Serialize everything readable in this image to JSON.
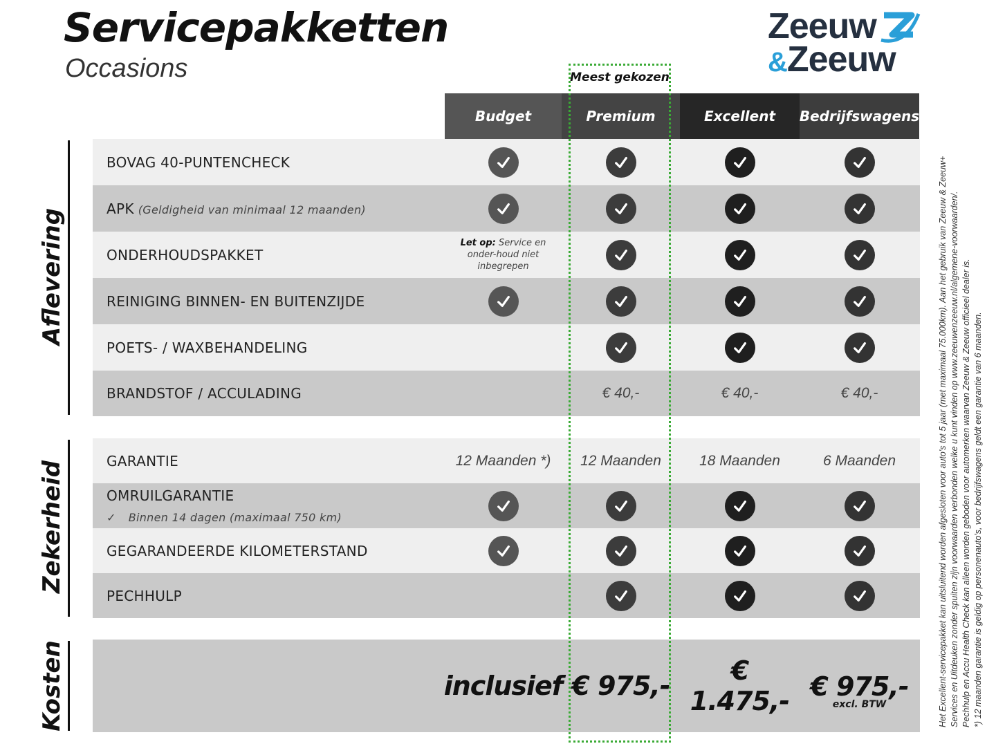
{
  "header": {
    "title": "Servicepakketten",
    "subtitle": "Occasions",
    "logo_text": [
      "Zeeuw",
      "&Zeeuw"
    ]
  },
  "highlight": {
    "label": "Meest gekozen",
    "color": "#3aaa35"
  },
  "columns": [
    {
      "label": "Budget",
      "header_color": "#555555",
      "check_color": "#555555"
    },
    {
      "label": "Premium",
      "header_color": "#444444",
      "check_color": "#3c3c3c"
    },
    {
      "label": "Excellent",
      "header_color": "#262626",
      "check_color": "#1f1f1f"
    },
    {
      "label": "Bedrijfswagens",
      "header_color": "#3d3d3d",
      "check_color": "#333333"
    }
  ],
  "sections": [
    {
      "title": "Aflevering",
      "rows": [
        {
          "label": "BOVAG 40-PUNTENCHECK",
          "cells": [
            "check",
            "check",
            "check",
            "check"
          ]
        },
        {
          "label": "APK",
          "note": "(Geldigheid van minimaal 12 maanden)",
          "cells": [
            "check",
            "check",
            "check",
            "check"
          ]
        },
        {
          "label": "ONDERHOUDSPAKKET",
          "cells": [
            "note",
            "check",
            "check",
            "check"
          ],
          "budget_note_bold": "Let op:",
          "budget_note": "Service en onder-houd niet inbegrepen"
        },
        {
          "label": "REINIGING BINNEN- EN BUITENZIJDE",
          "cells": [
            "check",
            "check",
            "check",
            "check"
          ]
        },
        {
          "label": "POETS- / WAXBEHANDELING",
          "cells": [
            "",
            "check",
            "check",
            "check"
          ]
        },
        {
          "label": "BRANDSTOF / ACCULADING",
          "cells": [
            "",
            "€ 40,-",
            "€ 40,-",
            "€ 40,-"
          ]
        }
      ]
    },
    {
      "title": "Zekerheid",
      "rows": [
        {
          "label": "GARANTIE",
          "cells": [
            "12 Maanden *)",
            "12 Maanden",
            "18 Maanden",
            "6 Maanden"
          ]
        },
        {
          "label": "OMRUILGARANTIE",
          "sub": "Binnen 14 dagen (maximaal 750 km)",
          "cells": [
            "check",
            "check",
            "check",
            "check"
          ]
        },
        {
          "label": "GEGARANDEERDE KILOMETERSTAND",
          "cells": [
            "check",
            "check",
            "check",
            "check"
          ]
        },
        {
          "label": "PECHHULP",
          "cells": [
            "",
            "check",
            "check",
            "check"
          ]
        }
      ]
    },
    {
      "title": "Kosten",
      "prices": [
        "inclusief",
        "€ 975,-",
        "€ 1.475,-",
        "€ 975,-"
      ],
      "price_note": "excl. BTW"
    }
  ],
  "footnotes": [
    "Het Excellent-servicepakket kan uitsluitend worden afgesloten voor auto's tot 5 jaar (met maximaal 75.000km). Aan het gebruik van Zeeuw & Zeeuw+",
    "Services en Uitdeuken zonder spuiten zijn voorwaarden verbonden welke u kunt vinden op www.zeeuwenzeeuw.nl/algemene-voorwaarden/.",
    "Pechhulp en Accu Health Check kan alleen worden geboden voor automerken waarvan Zeeuw & Zeeuw officieel dealer is.",
    "*) 12 maanden garantie is geldig op personenauto's, voor bedrijfswagens geldt een garantie van 6 maanden."
  ]
}
